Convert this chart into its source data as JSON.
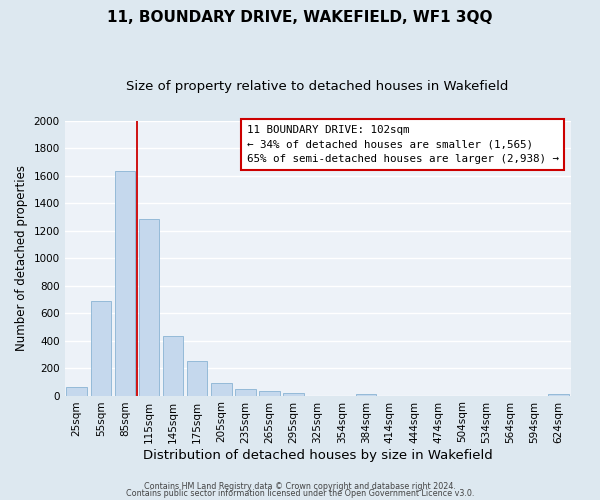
{
  "title": "11, BOUNDARY DRIVE, WAKEFIELD, WF1 3QQ",
  "subtitle": "Size of property relative to detached houses in Wakefield",
  "xlabel": "Distribution of detached houses by size in Wakefield",
  "ylabel": "Number of detached properties",
  "categories": [
    "25sqm",
    "55sqm",
    "85sqm",
    "115sqm",
    "145sqm",
    "175sqm",
    "205sqm",
    "235sqm",
    "265sqm",
    "295sqm",
    "325sqm",
    "354sqm",
    "384sqm",
    "414sqm",
    "444sqm",
    "474sqm",
    "504sqm",
    "534sqm",
    "564sqm",
    "594sqm",
    "624sqm"
  ],
  "bar_values": [
    65,
    690,
    1635,
    1285,
    430,
    250,
    90,
    50,
    30,
    20,
    0,
    0,
    15,
    0,
    0,
    0,
    0,
    0,
    0,
    0,
    15
  ],
  "bar_color": "#c5d8ed",
  "bar_edge_color": "#8ab4d4",
  "vline_color": "#cc0000",
  "vline_x": 2.5,
  "ylim": [
    0,
    2000
  ],
  "yticks": [
    0,
    200,
    400,
    600,
    800,
    1000,
    1200,
    1400,
    1600,
    1800,
    2000
  ],
  "annotation_title": "11 BOUNDARY DRIVE: 102sqm",
  "annotation_line1": "← 34% of detached houses are smaller (1,565)",
  "annotation_line2": "65% of semi-detached houses are larger (2,938) →",
  "annotation_box_facecolor": "#ffffff",
  "annotation_box_edgecolor": "#cc0000",
  "footer1": "Contains HM Land Registry data © Crown copyright and database right 2024.",
  "footer2": "Contains public sector information licensed under the Open Government Licence v3.0.",
  "bg_color": "#dde8f0",
  "plot_bg_color": "#edf2f8",
  "grid_color": "#ffffff",
  "title_fontsize": 11,
  "subtitle_fontsize": 9.5,
  "xlabel_fontsize": 9.5,
  "ylabel_fontsize": 8.5,
  "tick_fontsize": 7.5,
  "annot_fontsize": 7.8,
  "footer_fontsize": 5.8
}
